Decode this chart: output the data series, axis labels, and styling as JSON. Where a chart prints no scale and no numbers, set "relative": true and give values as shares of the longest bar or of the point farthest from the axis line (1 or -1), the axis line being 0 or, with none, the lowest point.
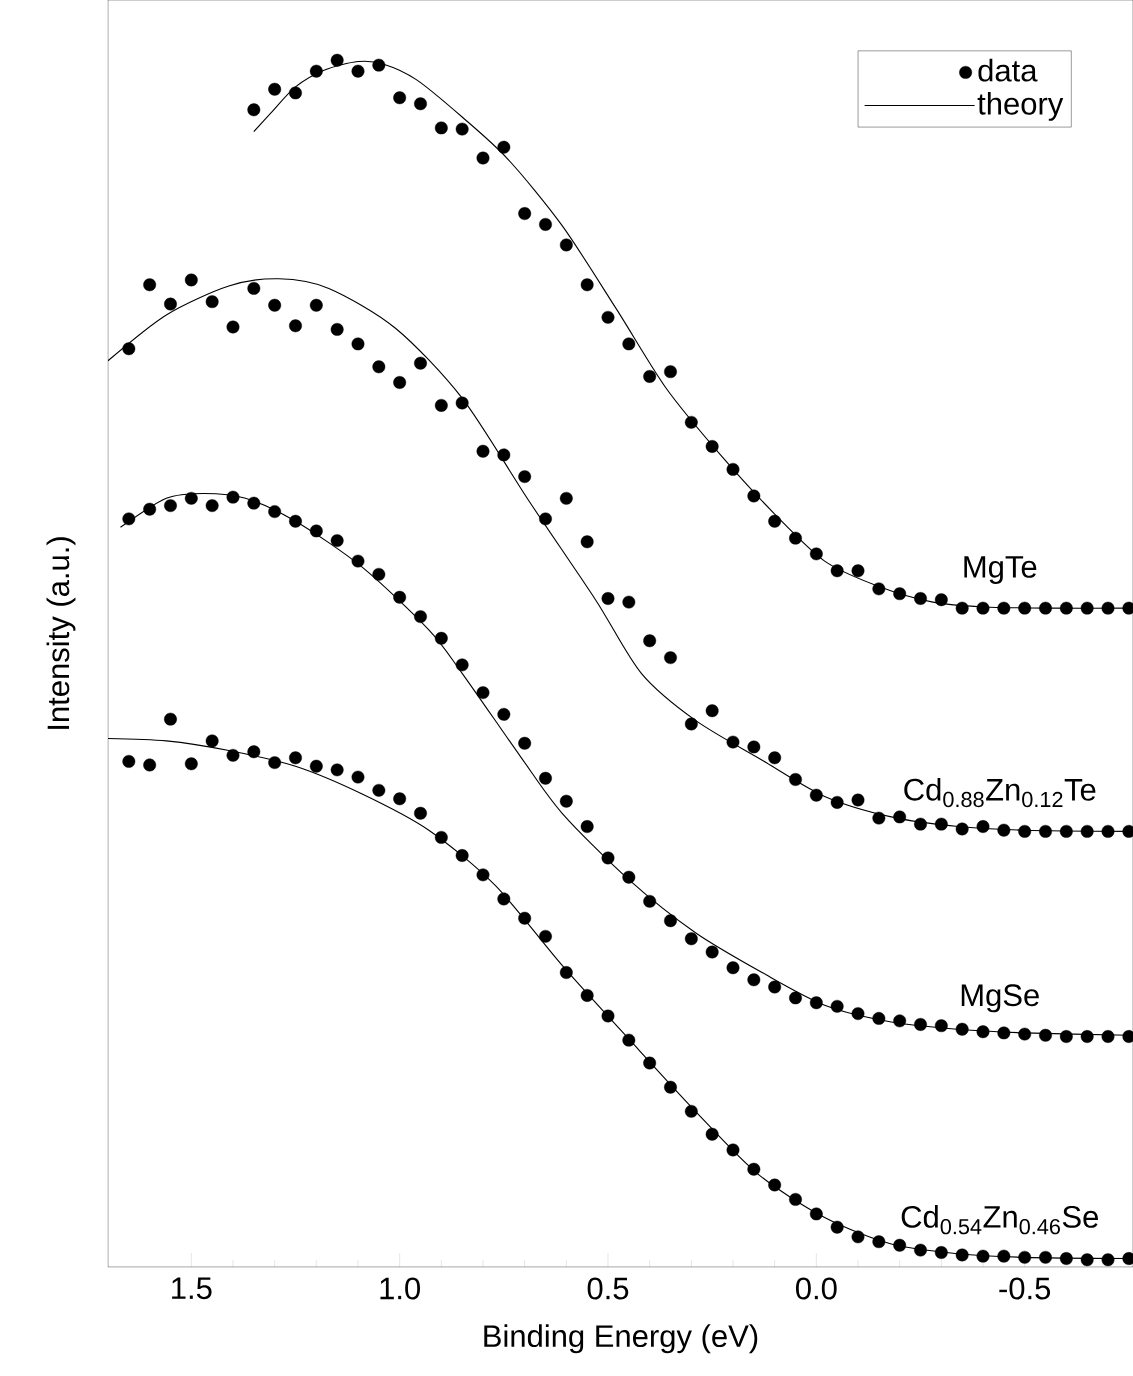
{
  "chart_data": {
    "type": "scatter",
    "xlabel": "Binding Energy (eV)",
    "ylabel": "Intensity (a.u.)",
    "xlim": [
      1.7,
      -0.76
    ],
    "xticks": [
      1.5,
      {
        "value": 1.0,
        "label": "1.0"
      },
      0.5,
      {
        "value": 0.0,
        "label": "0.0"
      },
      -0.5
    ],
    "relative": true,
    "legend": "top right",
    "series": [
      {
        "name": "data",
        "marker": "circle",
        "color": "#000000",
        "x": [
          1.35,
          1.3,
          1.25,
          1.2,
          1.15,
          1.1,
          1.05,
          1.0,
          0.95,
          0.9,
          0.85,
          0.8,
          0.75,
          0.7,
          0.65,
          0.6,
          0.55,
          0.5,
          0.45,
          0.4,
          0.35,
          0.3,
          0.25,
          0.2,
          0.15,
          0.1,
          0.05,
          0.0,
          -0.05,
          -0.1,
          -0.15,
          -0.2,
          -0.25,
          -0.3,
          -0.35,
          -0.4,
          -0.45,
          -0.5,
          -0.55,
          -0.6,
          -0.65,
          -0.7,
          -0.75
        ],
        "values": [
          0.959,
          0.976,
          0.973,
          0.991,
          1.0,
          0.991,
          0.996,
          0.969,
          0.964,
          0.944,
          0.943,
          0.919,
          0.928,
          0.873,
          0.864,
          0.847,
          0.814,
          0.787,
          0.765,
          0.738,
          0.742,
          0.7,
          0.68,
          0.661,
          0.639,
          0.618,
          0.604,
          0.591,
          0.577,
          0.577,
          0.562,
          0.558,
          0.554,
          0.553,
          0.546,
          0.546,
          0.546,
          0.546,
          0.546,
          0.546,
          0.546,
          0.546,
          0.546
        ]
      },
      {
        "name": "theory",
        "type": "line",
        "marker": "none",
        "color": "#000000",
        "x": [
          1.35,
          1.31,
          1.25,
          1.18,
          1.1,
          1.04,
          0.96,
          0.85,
          0.74,
          0.61,
          0.48,
          0.36,
          0.23,
          0.1,
          -0.02,
          -0.15,
          -0.28,
          -0.4,
          -0.56,
          -0.75
        ],
        "values": [
          0.941,
          0.956,
          0.978,
          0.992,
          0.999,
          0.997,
          0.984,
          0.953,
          0.918,
          0.863,
          0.794,
          0.728,
          0.673,
          0.624,
          0.585,
          0.564,
          0.551,
          0.547,
          0.546,
          0.546
        ]
      },
      {
        "marker": "circle",
        "color": "#000000",
        "x": [
          1.65,
          1.6,
          1.55,
          1.5,
          1.45,
          1.4,
          1.35,
          1.3,
          1.25,
          1.2,
          1.15,
          1.1,
          1.05,
          1.0,
          0.95,
          0.9,
          0.85,
          0.8,
          0.75,
          0.7,
          0.65,
          0.6,
          0.55,
          0.5,
          0.45,
          0.4,
          0.35,
          0.3,
          0.25,
          0.2,
          0.15,
          0.1,
          0.05,
          0.0,
          -0.05,
          -0.1,
          -0.15,
          -0.2,
          -0.25,
          -0.3,
          -0.35,
          -0.4,
          -0.45,
          -0.5,
          -0.55,
          -0.6,
          -0.65,
          -0.7,
          -0.75
        ],
        "values": [
          0.761,
          0.814,
          0.798,
          0.818,
          0.8,
          0.779,
          0.811,
          0.797,
          0.78,
          0.797,
          0.777,
          0.765,
          0.746,
          0.733,
          0.749,
          0.714,
          0.716,
          0.676,
          0.673,
          0.655,
          0.62,
          0.637,
          0.601,
          0.554,
          0.551,
          0.519,
          0.505,
          0.45,
          0.461,
          0.435,
          0.431,
          0.422,
          0.404,
          0.391,
          0.385,
          0.387,
          0.372,
          0.373,
          0.367,
          0.367,
          0.363,
          0.365,
          0.362,
          0.361,
          0.361,
          0.361,
          0.361,
          0.361,
          0.361
        ]
      },
      {
        "type": "line",
        "marker": "none",
        "color": "#000000",
        "x": [
          1.7,
          1.56,
          1.41,
          1.29,
          1.17,
          1.01,
          0.85,
          0.69,
          0.53,
          0.42,
          0.29,
          0.13,
          -0.02,
          -0.18,
          -0.34,
          -0.5,
          -0.75
        ],
        "values": [
          0.751,
          0.789,
          0.813,
          0.819,
          0.811,
          0.778,
          0.72,
          0.635,
          0.553,
          0.492,
          0.453,
          0.42,
          0.39,
          0.373,
          0.365,
          0.362,
          0.361
        ]
      },
      {
        "marker": "circle",
        "color": "#000000",
        "x": [
          1.65,
          1.6,
          1.55,
          1.5,
          1.45,
          1.4,
          1.35,
          1.3,
          1.25,
          1.2,
          1.15,
          1.1,
          1.05,
          1.0,
          0.95,
          0.9,
          0.85,
          0.8,
          0.75,
          0.7,
          0.65,
          0.6,
          0.55,
          0.5,
          0.45,
          0.4,
          0.35,
          0.3,
          0.25,
          0.2,
          0.15,
          0.1,
          0.05,
          0.0,
          -0.05,
          -0.1,
          -0.15,
          -0.2,
          -0.25,
          -0.3,
          -0.35,
          -0.4,
          -0.45,
          -0.5,
          -0.55,
          -0.6,
          -0.65,
          -0.7,
          -0.75
        ],
        "values": [
          0.62,
          0.628,
          0.631,
          0.637,
          0.631,
          0.638,
          0.633,
          0.626,
          0.618,
          0.61,
          0.602,
          0.585,
          0.574,
          0.555,
          0.539,
          0.521,
          0.499,
          0.476,
          0.458,
          0.434,
          0.405,
          0.386,
          0.365,
          0.339,
          0.323,
          0.303,
          0.287,
          0.272,
          0.261,
          0.248,
          0.238,
          0.232,
          0.223,
          0.219,
          0.216,
          0.21,
          0.206,
          0.204,
          0.201,
          0.2,
          0.197,
          0.195,
          0.194,
          0.193,
          0.192,
          0.191,
          0.191,
          0.191,
          0.191
        ]
      },
      {
        "type": "line",
        "marker": "none",
        "color": "#000000",
        "x": [
          1.67,
          1.56,
          1.47,
          1.37,
          1.25,
          1.09,
          0.93,
          0.85,
          0.71,
          0.61,
          0.45,
          0.29,
          0.13,
          -0.02,
          -0.18,
          -0.34,
          -0.5,
          -0.75
        ],
        "values": [
          0.613,
          0.637,
          0.641,
          0.637,
          0.618,
          0.58,
          0.528,
          0.492,
          0.423,
          0.376,
          0.321,
          0.277,
          0.244,
          0.217,
          0.203,
          0.197,
          0.194,
          0.192
        ]
      },
      {
        "marker": "circle",
        "color": "#000000",
        "x": [
          1.65,
          1.6,
          1.55,
          1.5,
          1.45,
          1.4,
          1.35,
          1.3,
          1.25,
          1.2,
          1.15,
          1.1,
          1.05,
          1.0,
          0.95,
          0.9,
          0.85,
          0.8,
          0.75,
          0.7,
          0.65,
          0.6,
          0.55,
          0.5,
          0.45,
          0.4,
          0.35,
          0.3,
          0.25,
          0.2,
          0.15,
          0.1,
          0.05,
          0.0,
          -0.05,
          -0.1,
          -0.15,
          -0.2,
          -0.25,
          -0.3,
          -0.35,
          -0.4,
          -0.45,
          -0.5,
          -0.55,
          -0.6,
          -0.65,
          -0.7,
          -0.75
        ],
        "values": [
          0.419,
          0.416,
          0.454,
          0.417,
          0.436,
          0.424,
          0.427,
          0.418,
          0.422,
          0.415,
          0.412,
          0.406,
          0.395,
          0.388,
          0.376,
          0.356,
          0.341,
          0.325,
          0.305,
          0.289,
          0.274,
          0.244,
          0.225,
          0.208,
          0.188,
          0.169,
          0.149,
          0.129,
          0.11,
          0.097,
          0.081,
          0.068,
          0.056,
          0.044,
          0.033,
          0.025,
          0.021,
          0.018,
          0.014,
          0.012,
          0.01,
          0.009,
          0.009,
          0.008,
          0.008,
          0.007,
          0.006,
          0.006,
          0.007
        ]
      },
      {
        "type": "line",
        "marker": "none",
        "color": "#000000",
        "x": [
          1.7,
          1.56,
          1.41,
          1.25,
          1.09,
          0.93,
          0.77,
          0.61,
          0.45,
          0.29,
          0.14,
          -0.02,
          -0.18,
          -0.34,
          -0.5,
          -0.75
        ],
        "values": [
          0.438,
          0.436,
          0.428,
          0.415,
          0.392,
          0.362,
          0.316,
          0.25,
          0.189,
          0.129,
          0.077,
          0.041,
          0.019,
          0.011,
          0.008,
          0.007
        ]
      }
    ],
    "annotations": [
      "MgTe",
      "Cd$_{0.88}$Zn$_{0.12}$Te",
      "MgSe",
      "Cd$_{0.54}$Zn$_{0.46}$Se"
    ]
  }
}
